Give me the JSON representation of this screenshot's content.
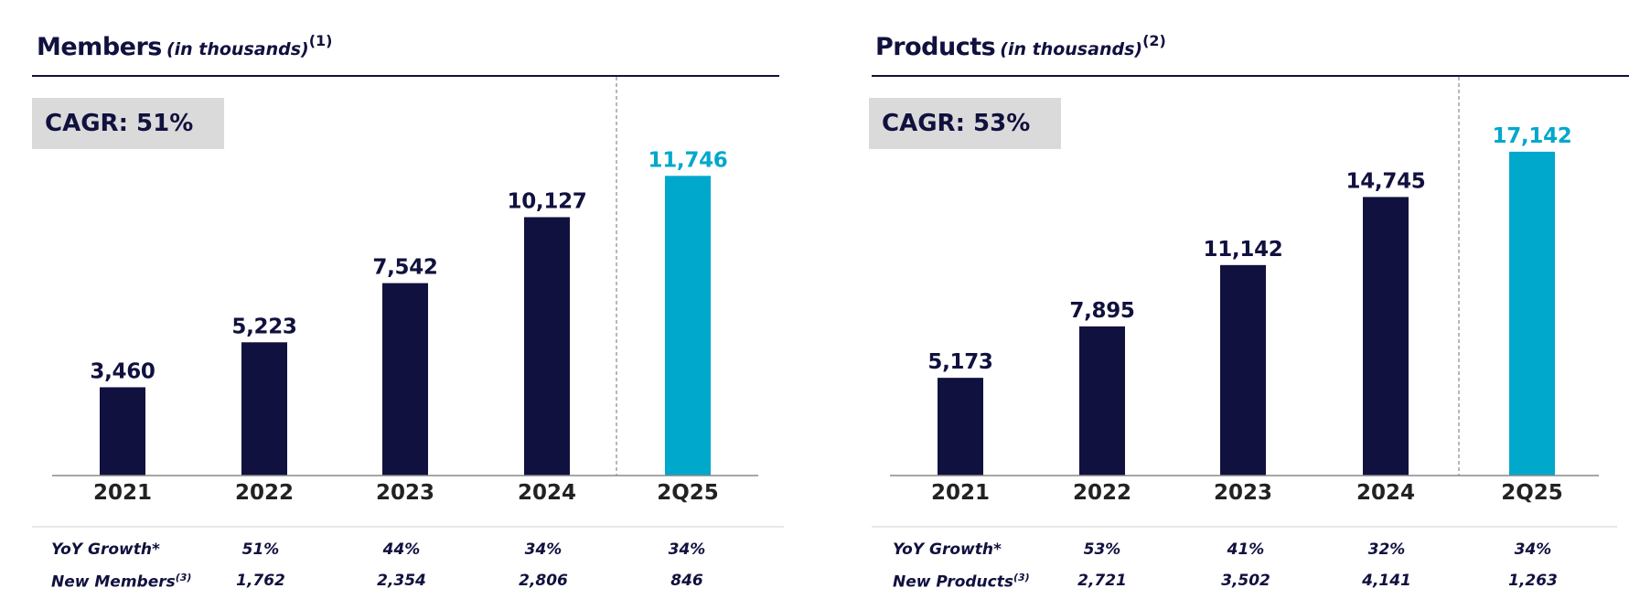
{
  "colors": {
    "dark": "#11113f",
    "accent": "#00a8cc",
    "axis": "#888888",
    "divider": "#888888",
    "cagr_bg": "#dadada"
  },
  "panels": [
    {
      "title": "Members",
      "subtitle": "(in thousands)",
      "note": "(1)",
      "cagr": "CAGR: 51%",
      "rows": [
        {
          "label": "YoY Growth*",
          "sup": "",
          "values": [
            "51%",
            "44%",
            "34%",
            "34%"
          ]
        },
        {
          "label": "New Members",
          "sup": "(3)",
          "values": [
            "1,762",
            "2,354",
            "2,806",
            "846"
          ]
        }
      ]
    },
    {
      "title": "Products",
      "subtitle": "(in thousands)",
      "note": "(2)",
      "cagr": "CAGR: 53%",
      "rows": [
        {
          "label": "YoY Growth*",
          "sup": "",
          "values": [
            "53%",
            "41%",
            "32%",
            "34%"
          ]
        },
        {
          "label": "New Products",
          "sup": "(3)",
          "values": [
            "2,721",
            "3,502",
            "4,141",
            "1,263"
          ]
        }
      ]
    }
  ],
  "chart_data": [
    {
      "type": "bar",
      "title": "Members (in thousands)",
      "categories": [
        "2021",
        "2022",
        "2023",
        "2024",
        "2Q25"
      ],
      "values": [
        3460,
        5223,
        7542,
        10127,
        11746
      ],
      "labels": [
        "3,460",
        "5,223",
        "7,542",
        "10,127",
        "11,746"
      ],
      "highlight_index": 4,
      "ylim": [
        0,
        12500
      ],
      "xlabel": "",
      "ylabel": ""
    },
    {
      "type": "bar",
      "title": "Products (in thousands)",
      "categories": [
        "2021",
        "2022",
        "2023",
        "2024",
        "2Q25"
      ],
      "values": [
        5173,
        7895,
        11142,
        14745,
        17142
      ],
      "labels": [
        "5,173",
        "7,895",
        "11,142",
        "14,745",
        "17,142"
      ],
      "highlight_index": 4,
      "ylim": [
        0,
        18000
      ],
      "xlabel": "",
      "ylabel": ""
    }
  ]
}
